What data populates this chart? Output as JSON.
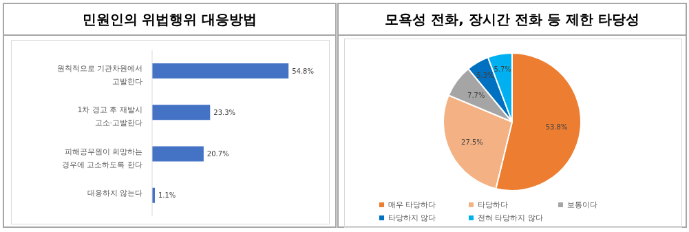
{
  "chart_data": [
    {
      "type": "bar",
      "title": "민원인의 위법행위 대응방법",
      "orientation": "horizontal",
      "categories": [
        "원칙적으로 기관차원에서 고발한다",
        "1차 경고 후 재발시 고소·고발한다",
        "피해공무원이 희망하는 경우에 고소하도록 한다",
        "대응하지 않는다"
      ],
      "values": [
        54.8,
        23.3,
        20.7,
        1.1
      ],
      "color": "#4472c4",
      "value_labels": [
        "54.8%",
        "23.3%",
        "20.7%",
        "1.1%"
      ],
      "tick_labels": "y"
    },
    {
      "type": "pie",
      "title": "모욕성 전화, 장시간 전화 등 제한 타당성",
      "categories": [
        "매우 타당하다",
        "타당하다",
        "보통이다",
        "타당하지 않다",
        "전혀 타당하지 않다"
      ],
      "values": [
        53.8,
        27.5,
        7.7,
        5.3,
        5.7
      ],
      "colors": [
        "#ed7d31",
        "#f4b183",
        "#a5a5a5",
        "#0070c0",
        "#00b0f0"
      ],
      "value_labels": [
        "53.8%",
        "27.5%",
        "7.7%",
        "5.3%",
        "5.7%"
      ],
      "legend": "bottom"
    }
  ]
}
